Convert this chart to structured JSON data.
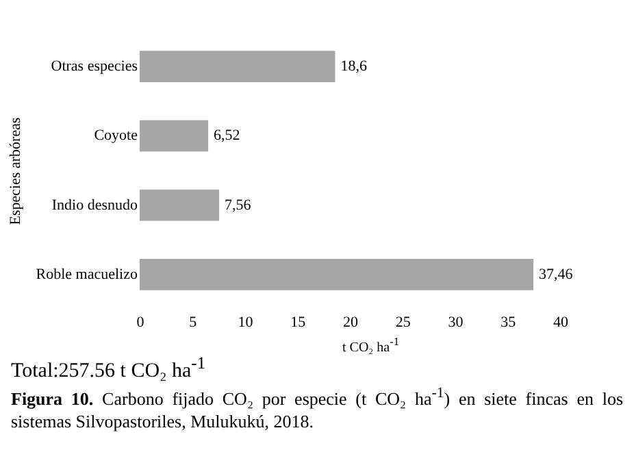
{
  "chart_data": {
    "type": "bar",
    "orientation": "horizontal",
    "ylabel": "Especies arbóreas",
    "xlabel": "t CO₂ ha$^{-1}$",
    "categories": [
      "Otras especies",
      "Coyote",
      "Indio desnudo",
      "Roble macuelizo"
    ],
    "values": [
      18.6,
      6.52,
      7.56,
      37.46
    ],
    "value_labels": [
      "18,6",
      "6,52",
      "7,56",
      "37,46"
    ],
    "color": "#a6a6a6",
    "xlim": [
      0,
      40
    ],
    "xticks": [
      0,
      5,
      10,
      15,
      20,
      25,
      30,
      35,
      40
    ],
    "grid": false,
    "annotations": [
      "Total:257.56 t CO₂ ha$^{-1}$",
      "Figura 10. Carbono fijado CO₂ por especie (t CO₂ ha$^{-1}$) en siete fincas en los sistemas Silvopastoriles, Mulukukú, 2018."
    ]
  }
}
